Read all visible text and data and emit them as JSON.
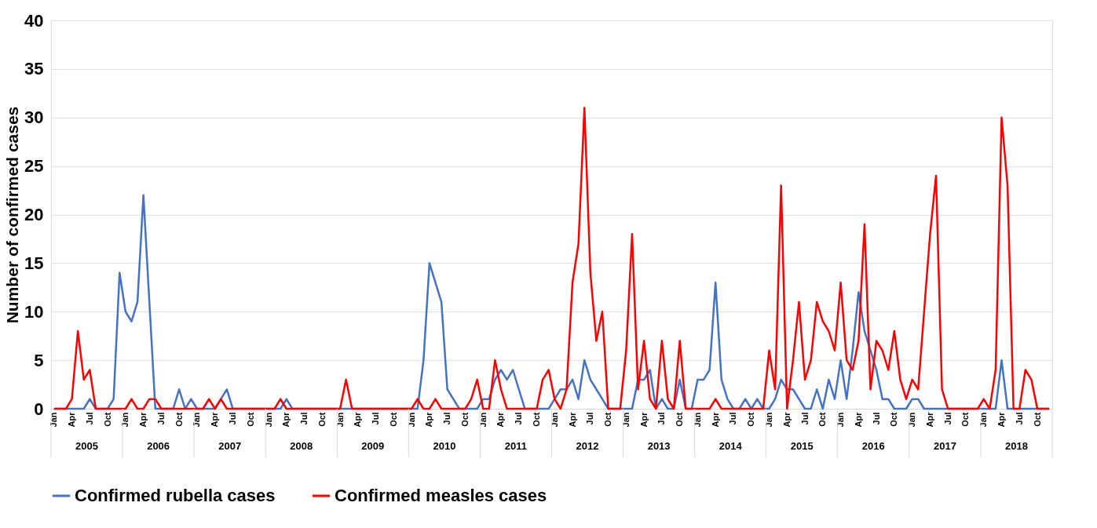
{
  "chart_data": {
    "type": "line",
    "ylabel": "Number of confirmed cases",
    "categories": [
      "Jan",
      null,
      null,
      "Apr",
      null,
      null,
      "Jul",
      null,
      null,
      "Oct",
      null,
      null,
      "Jan",
      null,
      null,
      "Apr",
      null,
      null,
      "Jul",
      null,
      null,
      "Oct",
      null,
      null,
      "Jan",
      null,
      null,
      "Apr",
      null,
      null,
      "Jul",
      null,
      null,
      "Oct",
      null,
      null,
      "Jan",
      null,
      null,
      "Apr",
      null,
      null,
      "Jul",
      null,
      null,
      "Oct",
      null,
      null,
      "Jan",
      null,
      null,
      "Apr",
      null,
      null,
      "Jul",
      null,
      null,
      "Oct",
      null,
      null,
      "Jan",
      null,
      null,
      "Apr",
      null,
      null,
      "Jul",
      null,
      null,
      "Oct",
      null,
      null,
      "Jan",
      null,
      null,
      "Apr",
      null,
      null,
      "Jul",
      null,
      null,
      "Oct",
      null,
      null,
      "Jan",
      null,
      null,
      "Apr",
      null,
      null,
      "Jul",
      null,
      null,
      "Oct",
      null,
      null,
      "Jan",
      null,
      null,
      "Apr",
      null,
      null,
      "Jul",
      null,
      null,
      "Oct",
      null,
      null,
      "Jan",
      null,
      null,
      "Apr",
      null,
      null,
      "Jul",
      null,
      null,
      "Oct",
      null,
      null,
      "Jan",
      null,
      null,
      "Apr",
      null,
      null,
      "Jul",
      null,
      null,
      "Oct",
      null,
      null,
      "Jan",
      null,
      null,
      "Apr",
      null,
      null,
      "Jul",
      null,
      null,
      "Oct",
      null,
      null,
      "Jan",
      null,
      null,
      "Apr",
      null,
      null,
      "Jul",
      null,
      null,
      "Oct",
      null,
      null,
      "Jan",
      null,
      null,
      "Apr",
      null,
      null,
      "Jul",
      null,
      null,
      "Oct",
      null,
      null
    ],
    "annotations": [
      "2005",
      "2006",
      "2007",
      "2008",
      "2009",
      "2010",
      "2011",
      "2012",
      "2013",
      "2014",
      "2015",
      "2016",
      "2017",
      "2018"
    ],
    "series": [
      {
        "name": "Confirmed rubella cases",
        "color": "#4472c4",
        "values": [
          0,
          0,
          0,
          0,
          0,
          0,
          1,
          0,
          0,
          0,
          1,
          14,
          10,
          9,
          11,
          22,
          11,
          0,
          0,
          0,
          0,
          2,
          0,
          1,
          0,
          0,
          0,
          0,
          1,
          2,
          0,
          0,
          0,
          0,
          0,
          0,
          0,
          0,
          0,
          1,
          0,
          0,
          0,
          0,
          0,
          0,
          0,
          0,
          0,
          0,
          0,
          0,
          0,
          0,
          0,
          0,
          0,
          0,
          0,
          0,
          0,
          0,
          5,
          15,
          13,
          11,
          2,
          1,
          0,
          0,
          0,
          0,
          1,
          1,
          3,
          4,
          3,
          4,
          2,
          0,
          0,
          0,
          0,
          0,
          1,
          2,
          2,
          3,
          1,
          5,
          3,
          2,
          1,
          0,
          0,
          0,
          0,
          0,
          3,
          3,
          4,
          0,
          1,
          0,
          0,
          3,
          0,
          0,
          3,
          3,
          4,
          13,
          3,
          1,
          0,
          0,
          1,
          0,
          1,
          0,
          0,
          1,
          3,
          2,
          2,
          1,
          0,
          0,
          2,
          0,
          3,
          1,
          5,
          1,
          6,
          12,
          8,
          6,
          4,
          1,
          1,
          0,
          0,
          0,
          1,
          1,
          0,
          0,
          0,
          0,
          0,
          0,
          0,
          0,
          0,
          0,
          0,
          0,
          0,
          5,
          0,
          0,
          0,
          0,
          0,
          0,
          0,
          0
        ]
      },
      {
        "name": "Confirmed measles cases",
        "color": "#ff0000",
        "values": [
          0,
          0,
          0,
          1,
          8,
          3,
          4,
          0,
          0,
          0,
          0,
          0,
          0,
          1,
          0,
          0,
          1,
          1,
          0,
          0,
          0,
          0,
          0,
          0,
          0,
          0,
          1,
          0,
          1,
          0,
          0,
          0,
          0,
          0,
          0,
          0,
          0,
          0,
          1,
          0,
          0,
          0,
          0,
          0,
          0,
          0,
          0,
          0,
          0,
          3,
          0,
          0,
          0,
          0,
          0,
          0,
          0,
          0,
          0,
          0,
          0,
          1,
          0,
          0,
          1,
          0,
          0,
          0,
          0,
          0,
          1,
          3,
          0,
          0,
          5,
          2,
          0,
          0,
          0,
          0,
          0,
          0,
          3,
          4,
          1,
          0,
          2,
          13,
          17,
          31,
          14,
          7,
          10,
          0,
          0,
          0,
          6,
          18,
          2,
          7,
          1,
          0,
          7,
          1,
          0,
          7,
          0,
          0,
          0,
          0,
          0,
          1,
          0,
          0,
          0,
          0,
          0,
          0,
          0,
          0,
          6,
          2,
          23,
          0,
          5,
          11,
          3,
          5,
          11,
          9,
          8,
          6,
          13,
          5,
          4,
          7,
          19,
          2,
          7,
          6,
          4,
          8,
          3,
          1,
          3,
          2,
          10,
          18,
          24,
          2,
          0,
          0,
          0,
          0,
          0,
          0,
          1,
          0,
          4,
          30,
          23,
          0,
          0,
          4,
          3,
          0,
          0,
          0
        ]
      }
    ],
    "ylim": [
      0,
      40
    ],
    "yticks": [
      0,
      5,
      10,
      15,
      20,
      25,
      30,
      35,
      40
    ],
    "grid": "y",
    "legend": "bottom",
    "marker": "none",
    "line_style": "solid"
  }
}
